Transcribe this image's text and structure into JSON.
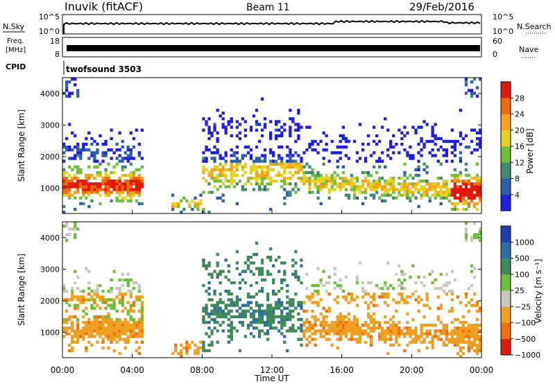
{
  "header": {
    "station": "Inuvik (fitACF)",
    "beam": "Beam 11",
    "date": "29/Feb/2016"
  },
  "status_panels": {
    "nsky_label": "N.Sky",
    "nsky_ticks": [
      "10^5",
      "10^0"
    ],
    "nsearch_label": "N.Search",
    "nsearch_ticks": [
      "10^5",
      "10^0"
    ],
    "freq_label_1": "Freq.",
    "freq_label_2": "[MHz]",
    "freq_ticks": [
      "18",
      "8"
    ],
    "nave_label": "Nave",
    "nave_ticks": [
      "60",
      "0"
    ],
    "cpid_label": "CPID",
    "cpid_value": "twofsound 3503"
  },
  "chart_data": [
    {
      "type": "heatmap",
      "name": "Power",
      "ylabel": "Slant Range [km]",
      "yticks": [
        "1000",
        "2000",
        "3000",
        "4000"
      ],
      "ylim": [
        200,
        4500
      ],
      "colorbar_label": "Power [dB]",
      "colorbar_ticks": [
        "4",
        "8",
        "12",
        "16",
        "20",
        "24",
        "28"
      ],
      "colors": [
        "#1f1fe0",
        "#2c5fa8",
        "#3f8a70",
        "#6fbf3a",
        "#e5d21e",
        "#f7a21a",
        "#f06a0c",
        "#e01a0a"
      ]
    },
    {
      "type": "heatmap",
      "name": "Velocity",
      "ylabel": "Slant Range [km]",
      "yticks": [
        "1000",
        "2000",
        "3000",
        "4000"
      ],
      "ylim": [
        200,
        4500
      ],
      "colorbar_label": "Velocity [m s⁻¹]",
      "colorbar_ticks": [
        "1000",
        "500",
        "100",
        "25",
        "−25",
        "−100",
        "−500",
        "−1000"
      ],
      "colors": [
        "#1f3fb0",
        "#2f6fa0",
        "#3f8a5a",
        "#6fbf3a",
        "#c8c8c0",
        "#f0a020",
        "#f07010",
        "#e01a0a"
      ]
    }
  ],
  "xaxis": {
    "label": "Time UT",
    "ticks": [
      "00:00",
      "04:00",
      "08:00",
      "12:00",
      "16:00",
      "20:00",
      "00:00"
    ],
    "range_hours": [
      0,
      24
    ]
  }
}
